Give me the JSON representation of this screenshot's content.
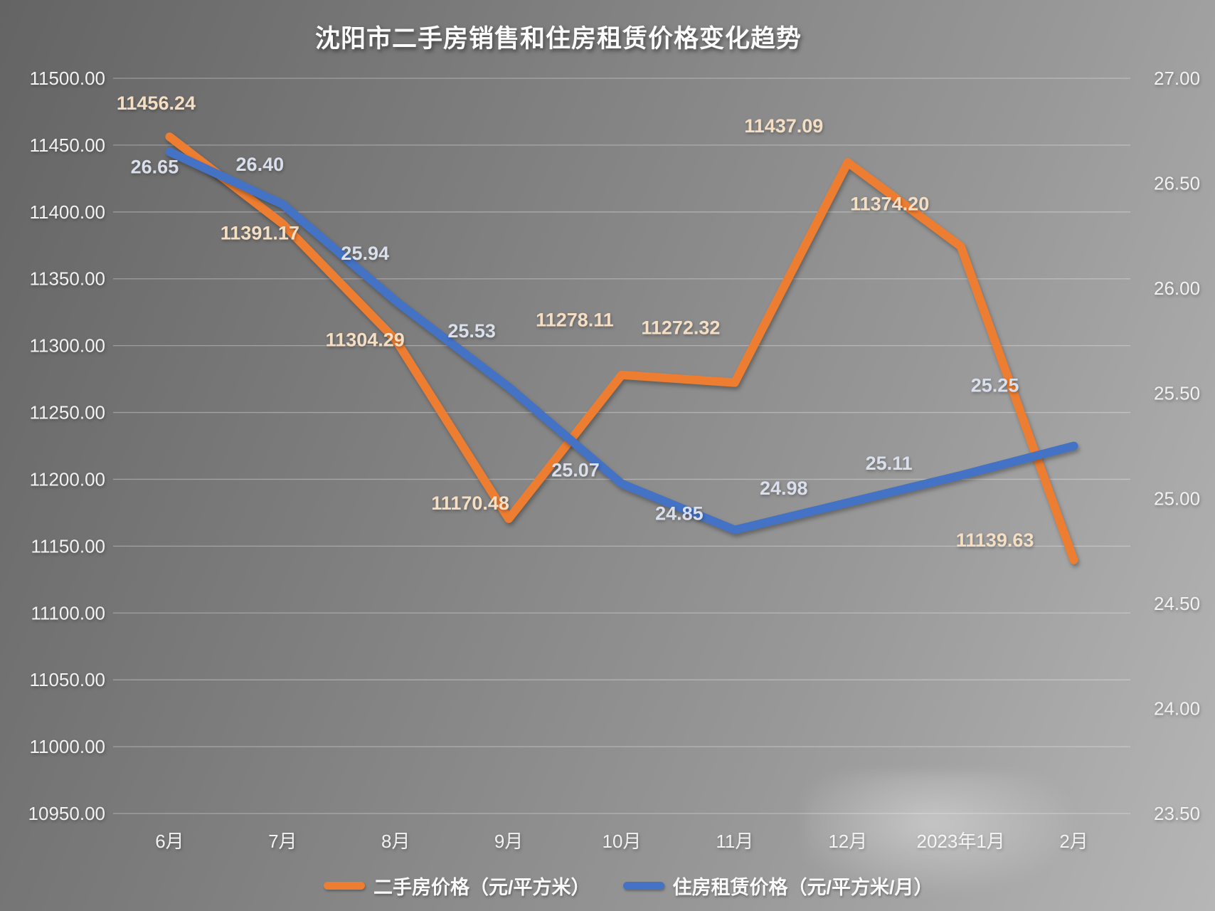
{
  "colors": {
    "sale_line": "#ED7D31",
    "rent_line": "#4472C4",
    "sale_label": "#f5dfc4",
    "rent_label": "#d9dfeb",
    "axis_text": "#f2f2f2",
    "title_text": "#fdfdfd"
  },
  "legend": {
    "sale_label": "二手房价格（元/平方米）",
    "rent_label": "住房租赁价格（元/平方米/月）"
  },
  "chart_data": {
    "type": "line",
    "title": "沈阳市二手房销售和住房租赁价格变化趋势",
    "categories": [
      "6月",
      "7月",
      "8月",
      "9月",
      "10月",
      "11月",
      "12月",
      "2023年1月",
      "2月"
    ],
    "series": [
      {
        "name": "二手房价格（元/平方米）",
        "axis": "left",
        "color": "#ED7D31",
        "values": [
          11456.24,
          11391.17,
          11304.29,
          11170.48,
          11278.11,
          11272.32,
          11437.09,
          11374.2,
          11139.63
        ],
        "labels": [
          "11456.24",
          "11391.17",
          "11304.29",
          "11170.48",
          "11278.11",
          "11272.32",
          "11437.09",
          "11374.20",
          "11139.63"
        ]
      },
      {
        "name": "住房租赁价格（元/平方米/月）",
        "axis": "right",
        "color": "#4472C4",
        "values": [
          26.65,
          26.4,
          25.94,
          25.53,
          25.07,
          24.85,
          24.98,
          25.11,
          25.25
        ],
        "labels": [
          "26.65",
          "26.40",
          "25.94",
          "25.53",
          "25.07",
          "24.85",
          "24.98",
          "25.11",
          "25.25"
        ]
      }
    ],
    "left_axis": {
      "min": 10950,
      "max": 11500,
      "step": 50,
      "ticks": [
        "11500.00",
        "11450.00",
        "11400.00",
        "11350.00",
        "11300.00",
        "11250.00",
        "11200.00",
        "11150.00",
        "11100.00",
        "11050.00",
        "11000.00",
        "10950.00"
      ]
    },
    "right_axis": {
      "min": 23.5,
      "max": 27.0,
      "step": 0.5,
      "ticks": [
        "27.00",
        "26.50",
        "26.00",
        "25.50",
        "25.00",
        "24.50",
        "24.00",
        "23.50"
      ]
    },
    "grid": true,
    "legend_position": "bottom"
  }
}
